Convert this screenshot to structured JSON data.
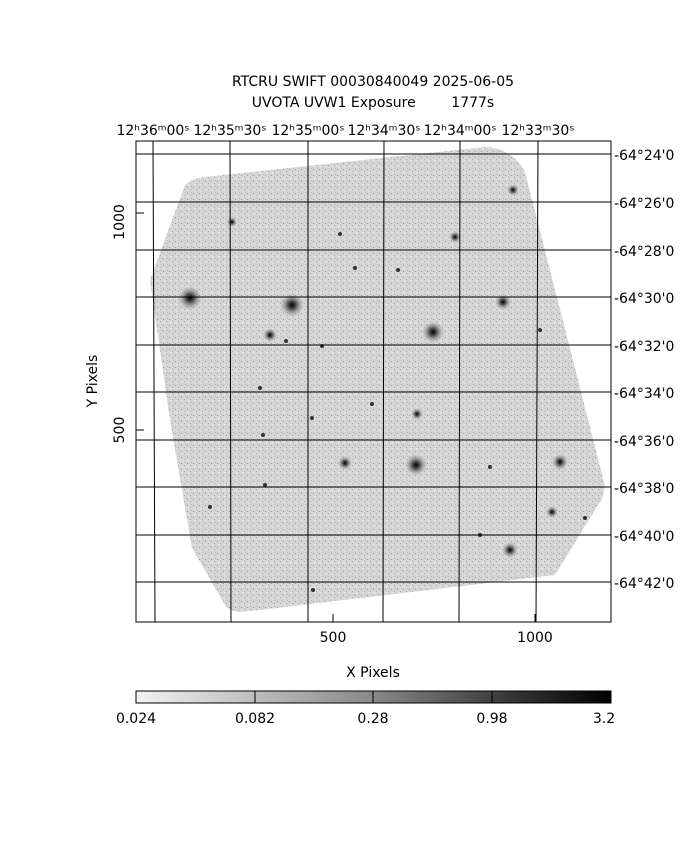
{
  "header": {
    "title": "RTCRU SWIFT 00030840049 2025-06-05",
    "subtitle": "UVOTA UVW1 Exposure        1777s"
  },
  "x_axis": {
    "label": "X Pixels",
    "ticks": [
      "500",
      "1000"
    ]
  },
  "y_axis": {
    "label": "Y Pixels",
    "ticks": [
      "500",
      "1000"
    ]
  },
  "ra_ticks": [
    "12ʰ36ᵐ00ˢ",
    "12ʰ35ᵐ30ˢ",
    "12ʰ35ᵐ00ˢ",
    "12ʰ34ᵐ30ˢ",
    "12ʰ34ᵐ00ˢ",
    "12ʰ33ᵐ30ˢ"
  ],
  "dec_ticks": [
    "-64°24'0",
    "-64°26'0",
    "-64°28'0",
    "-64°30'0",
    "-64°32'0",
    "-64°34'0",
    "-64°36'0",
    "-64°38'0",
    "-64°40'0",
    "-64°42'0"
  ],
  "colorbar": {
    "ticks": [
      "0.024",
      "0.082",
      "0.28",
      "0.98",
      "3.2"
    ]
  }
}
